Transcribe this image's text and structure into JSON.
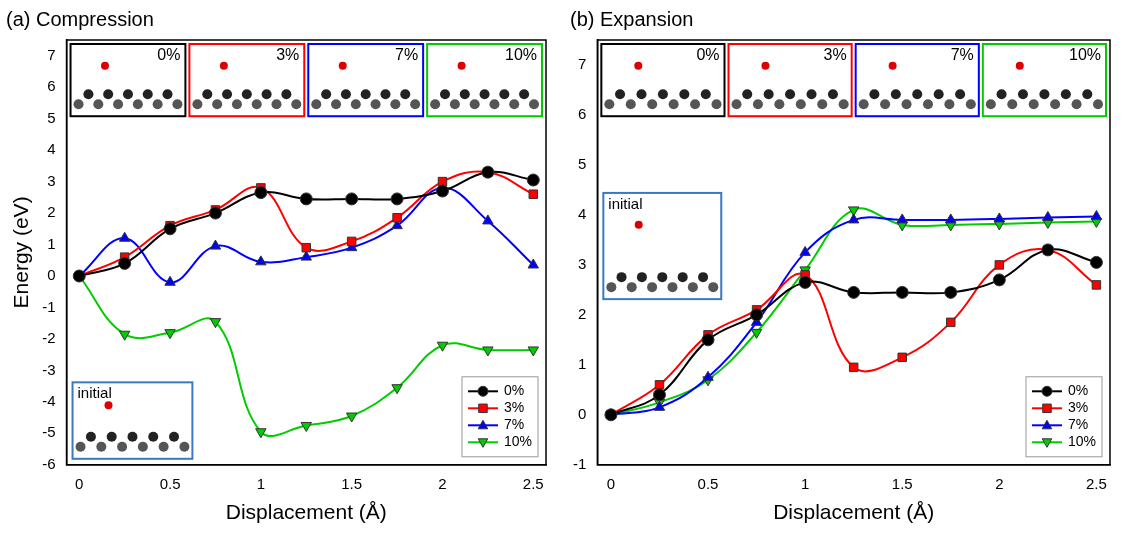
{
  "chart_data": [
    {
      "type": "line",
      "title": "(a) Compression",
      "x_label": "Displacement (Å)",
      "y_label": "Energy (eV)",
      "xlim": [
        -0.07,
        2.57
      ],
      "xticks": [
        0,
        0.5,
        1,
        1.5,
        2,
        2.5
      ],
      "ylim": [
        -6,
        7.5
      ],
      "yticks": [
        -6,
        -5,
        -4,
        -3,
        -2,
        -1,
        0,
        1,
        2,
        3,
        4,
        5,
        6,
        7
      ],
      "grid": false,
      "legend": "lower right",
      "x": [
        0,
        0.25,
        0.5,
        0.75,
        1.0,
        1.25,
        1.5,
        1.75,
        2.0,
        2.25,
        2.5
      ],
      "series": [
        {
          "name": "0%",
          "color": "#000000",
          "marker": "circle",
          "line_style": "solid",
          "values": [
            0,
            0.4,
            1.5,
            2.0,
            2.65,
            2.45,
            2.45,
            2.45,
            2.7,
            3.3,
            3.05
          ]
        },
        {
          "name": "3%",
          "color": "#ff0000",
          "marker": "square",
          "line_style": "solid",
          "values": [
            0,
            0.6,
            1.6,
            2.1,
            2.8,
            0.9,
            1.1,
            1.85,
            3.0,
            3.3,
            2.6
          ]
        },
        {
          "name": "7%",
          "color": "#0000ff",
          "marker": "triangle",
          "line_style": "solid",
          "values": [
            0,
            1.2,
            -0.2,
            0.95,
            0.45,
            0.6,
            0.9,
            1.6,
            2.8,
            1.75,
            0.35
          ]
        },
        {
          "name": "10%",
          "color": "#00cc00",
          "marker": "triangle_down",
          "line_style": "solid",
          "values": [
            0,
            -1.85,
            -1.8,
            -1.45,
            -4.95,
            -4.75,
            -4.45,
            -3.55,
            -2.2,
            -2.35,
            -2.35
          ]
        }
      ],
      "structure_labels": [
        "0%",
        "3%",
        "7%",
        "10%"
      ],
      "inset_label": "initial"
    },
    {
      "type": "line",
      "title": "(b) Expansion",
      "x_label": "Displacement (Å)",
      "xlim": [
        -0.07,
        2.57
      ],
      "xticks": [
        0,
        0.5,
        1,
        1.5,
        2,
        2.5
      ],
      "ylim": [
        -1,
        7.5
      ],
      "yticks": [
        -1,
        0,
        1,
        2,
        3,
        4,
        5,
        6,
        7
      ],
      "grid": false,
      "legend": "lower right",
      "x": [
        0,
        0.25,
        0.5,
        0.75,
        1.0,
        1.25,
        1.5,
        1.75,
        2.0,
        2.25,
        2.5
      ],
      "series": [
        {
          "name": "0%",
          "color": "#000000",
          "marker": "circle",
          "line_style": "solid",
          "values": [
            0,
            0.4,
            1.5,
            2.0,
            2.65,
            2.45,
            2.45,
            2.45,
            2.7,
            3.3,
            3.05
          ]
        },
        {
          "name": "3%",
          "color": "#ff0000",
          "marker": "square",
          "line_style": "solid",
          "values": [
            0,
            0.6,
            1.6,
            2.1,
            2.8,
            0.95,
            1.15,
            1.85,
            3.0,
            3.3,
            2.6
          ]
        },
        {
          "name": "7%",
          "color": "#0000ff",
          "marker": "triangle",
          "line_style": "solid",
          "values": [
            0,
            0.15,
            0.75,
            1.85,
            3.25,
            3.9,
            3.9,
            3.9,
            3.92,
            3.95,
            3.97
          ]
        },
        {
          "name": "10%",
          "color": "#00cc00",
          "marker": "triangle_down",
          "line_style": "solid",
          "values": [
            0,
            0.25,
            0.7,
            1.65,
            2.9,
            4.1,
            3.8,
            3.8,
            3.82,
            3.85,
            3.87
          ]
        }
      ],
      "structure_labels": [
        "0%",
        "3%",
        "7%",
        "10%"
      ],
      "inset_label": "initial"
    }
  ]
}
